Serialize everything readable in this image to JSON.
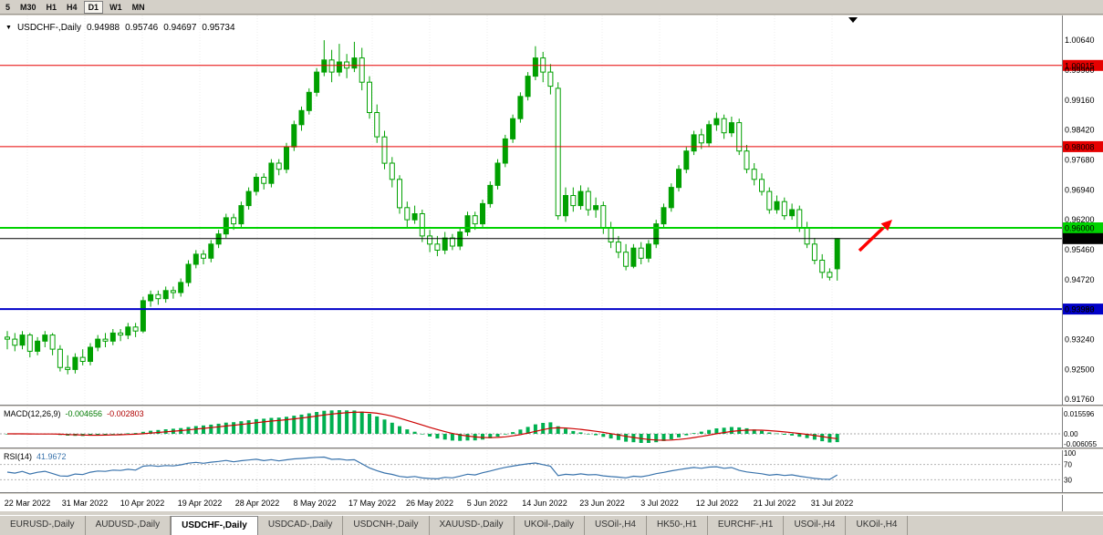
{
  "toolbar": {
    "timeframes": [
      "5",
      "M30",
      "H1",
      "H4",
      "D1",
      "W1",
      "MN"
    ],
    "active": "D1"
  },
  "chart": {
    "symbol_title": "USDCHF-,Daily",
    "open": "0.94988",
    "high": "0.95746",
    "low": "0.94697",
    "close": "0.95734"
  },
  "macd": {
    "title": "MACD(12,26,9)",
    "value_main": "-0.004656",
    "value_signal": "-0.002803",
    "axis_labels": [
      "0.015596",
      "0.00",
      "-0.006055"
    ]
  },
  "rsi": {
    "title": "RSI(14)",
    "value": "41.9672",
    "axis_labels": [
      "100",
      "70",
      "30"
    ]
  },
  "tabs": {
    "active_index": 2,
    "items": [
      "EURUSD-,Daily",
      "AUDUSD-,Daily",
      "USDCHF-,Daily",
      "USDCAD-,Daily",
      "USDCNH-,Daily",
      "XAUUSD-,Daily",
      "UKOil-,Daily",
      "USOil-,H4",
      "HK50-,H1",
      "EURCHF-,H1",
      "USOil-,H4",
      "UKOil-,H4"
    ]
  },
  "chart_data": {
    "type": "candlestick",
    "symbol": "USDCHF-",
    "timeframe": "Daily",
    "last_ohlc": {
      "open": 0.94988,
      "high": 0.95746,
      "low": 0.94697,
      "close": 0.95734
    },
    "price_axis": [
      "1.00640",
      "0.99900",
      "0.99160",
      "0.98420",
      "0.97680",
      "0.96940",
      "0.96200",
      "0.95460",
      "0.94720",
      "0.93980",
      "0.93240",
      "0.92500",
      "0.91760"
    ],
    "date_labels": [
      "22 Mar 2022",
      "31 Mar 2022",
      "10 Apr 2022",
      "19 Apr 2022",
      "28 Apr 2022",
      "8 May 2022",
      "17 May 2022",
      "26 May 2022",
      "5 Jun 2022",
      "14 Jun 2022",
      "23 Jun 2022",
      "3 Jul 2022",
      "12 Jul 2022",
      "21 Jul 2022",
      "31 Jul 2022"
    ],
    "levels": [
      {
        "label": "1.00015",
        "price": 1.00015,
        "color": "#e60000",
        "text_color": "#ffffff",
        "width": 1
      },
      {
        "label": "0.98008",
        "price": 0.98008,
        "color": "#e60000",
        "text_color": "#ffffff",
        "width": 1
      },
      {
        "label": "0.96000",
        "price": 0.96,
        "color": "#00d200",
        "text_color": "#000000",
        "width": 2
      },
      {
        "label": "0.95734",
        "price": 0.95734,
        "color": "#000000",
        "text_color": "#ffffff",
        "width": 1
      },
      {
        "label": "0.93993",
        "price": 0.93993,
        "color": "#0000c8",
        "text_color": "#ffffff",
        "width": 2
      }
    ],
    "colors": {
      "candle": "#00a000",
      "macd_hist": "#00b050",
      "macd_signal": "#cc0000",
      "rsi": "#3973ac",
      "arrow": "#ff0000"
    },
    "candles": [
      [
        0.933,
        0.9345,
        0.93,
        0.9325
      ],
      [
        0.9325,
        0.934,
        0.9295,
        0.931
      ],
      [
        0.931,
        0.9345,
        0.93,
        0.9335
      ],
      [
        0.9335,
        0.934,
        0.928,
        0.9295
      ],
      [
        0.9295,
        0.933,
        0.9285,
        0.932
      ],
      [
        0.932,
        0.9345,
        0.9305,
        0.9335
      ],
      [
        0.9335,
        0.934,
        0.9285,
        0.93
      ],
      [
        0.93,
        0.931,
        0.9245,
        0.9255
      ],
      [
        0.9255,
        0.9285,
        0.9238,
        0.925
      ],
      [
        0.925,
        0.929,
        0.924,
        0.928
      ],
      [
        0.928,
        0.93,
        0.926,
        0.927
      ],
      [
        0.927,
        0.9315,
        0.926,
        0.9305
      ],
      [
        0.9305,
        0.9335,
        0.9295,
        0.9325
      ],
      [
        0.9325,
        0.934,
        0.9305,
        0.932
      ],
      [
        0.932,
        0.935,
        0.931,
        0.934
      ],
      [
        0.934,
        0.935,
        0.932,
        0.9335
      ],
      [
        0.9335,
        0.9365,
        0.9325,
        0.9355
      ],
      [
        0.9355,
        0.9365,
        0.933,
        0.9345
      ],
      [
        0.9345,
        0.943,
        0.934,
        0.942
      ],
      [
        0.942,
        0.9445,
        0.9405,
        0.9435
      ],
      [
        0.9435,
        0.9445,
        0.941,
        0.9425
      ],
      [
        0.9425,
        0.9455,
        0.9415,
        0.9445
      ],
      [
        0.9445,
        0.9455,
        0.9425,
        0.944
      ],
      [
        0.944,
        0.9475,
        0.943,
        0.9465
      ],
      [
        0.9465,
        0.952,
        0.9455,
        0.951
      ],
      [
        0.951,
        0.9545,
        0.95,
        0.9535
      ],
      [
        0.9535,
        0.9545,
        0.951,
        0.9525
      ],
      [
        0.9525,
        0.957,
        0.9515,
        0.956
      ],
      [
        0.956,
        0.9595,
        0.955,
        0.9585
      ],
      [
        0.9585,
        0.9635,
        0.9575,
        0.9625
      ],
      [
        0.9625,
        0.9635,
        0.9595,
        0.961
      ],
      [
        0.961,
        0.9665,
        0.96,
        0.9655
      ],
      [
        0.9655,
        0.97,
        0.9645,
        0.969
      ],
      [
        0.969,
        0.9735,
        0.968,
        0.9725
      ],
      [
        0.9725,
        0.9735,
        0.9695,
        0.971
      ],
      [
        0.971,
        0.977,
        0.97,
        0.976
      ],
      [
        0.976,
        0.977,
        0.973,
        0.9745
      ],
      [
        0.9745,
        0.981,
        0.9735,
        0.98
      ],
      [
        0.98,
        0.9865,
        0.979,
        0.9855
      ],
      [
        0.9855,
        0.99,
        0.984,
        0.989
      ],
      [
        0.989,
        0.9945,
        0.988,
        0.9935
      ],
      [
        0.9935,
        0.9995,
        0.9925,
        0.9985
      ],
      [
        0.9985,
        1.0064,
        0.9975,
        1.0015
      ],
      [
        1.0015,
        1.004,
        0.996,
        0.9985
      ],
      [
        0.9985,
        1.0055,
        0.9975,
        1.001
      ],
      [
        1.001,
        1.003,
        0.997,
        0.9995
      ],
      [
        0.9995,
        1.006,
        0.9985,
        1.002
      ],
      [
        1.002,
        1.0045,
        0.994,
        0.996
      ],
      [
        0.996,
        0.9975,
        0.987,
        0.9885
      ],
      [
        0.9885,
        0.9905,
        0.981,
        0.9825
      ],
      [
        0.9825,
        0.984,
        0.9745,
        0.976
      ],
      [
        0.976,
        0.9775,
        0.97,
        0.972
      ],
      [
        0.972,
        0.973,
        0.9635,
        0.965
      ],
      [
        0.965,
        0.9665,
        0.96,
        0.962
      ],
      [
        0.962,
        0.9655,
        0.961,
        0.9635
      ],
      [
        0.9635,
        0.9645,
        0.9565,
        0.958
      ],
      [
        0.958,
        0.9595,
        0.954,
        0.956
      ],
      [
        0.956,
        0.958,
        0.953,
        0.9545
      ],
      [
        0.9545,
        0.959,
        0.9535,
        0.9575
      ],
      [
        0.9575,
        0.9585,
        0.9545,
        0.9555
      ],
      [
        0.9555,
        0.96,
        0.9545,
        0.959
      ],
      [
        0.959,
        0.964,
        0.958,
        0.963
      ],
      [
        0.963,
        0.964,
        0.9595,
        0.961
      ],
      [
        0.961,
        0.967,
        0.96,
        0.966
      ],
      [
        0.966,
        0.9715,
        0.965,
        0.9705
      ],
      [
        0.9705,
        0.977,
        0.9695,
        0.976
      ],
      [
        0.976,
        0.983,
        0.975,
        0.982
      ],
      [
        0.982,
        0.988,
        0.981,
        0.987
      ],
      [
        0.987,
        0.9935,
        0.986,
        0.9925
      ],
      [
        0.9925,
        0.9985,
        0.9915,
        0.9975
      ],
      [
        0.9975,
        1.0049,
        0.9965,
        1.002
      ],
      [
        1.002,
        1.0035,
        0.996,
        0.9985
      ],
      [
        0.9985,
        1.0005,
        0.993,
        0.995
      ],
      [
        0.9945,
        0.996,
        0.962,
        0.963
      ],
      [
        0.963,
        0.97,
        0.9615,
        0.968
      ],
      [
        0.968,
        0.97,
        0.964,
        0.9655
      ],
      [
        0.9655,
        0.9705,
        0.9645,
        0.969
      ],
      [
        0.969,
        0.97,
        0.963,
        0.9645
      ],
      [
        0.9645,
        0.9675,
        0.9625,
        0.9655
      ],
      [
        0.9655,
        0.9665,
        0.9585,
        0.96
      ],
      [
        0.96,
        0.9615,
        0.955,
        0.9565
      ],
      [
        0.9565,
        0.958,
        0.9525,
        0.954
      ],
      [
        0.954,
        0.956,
        0.9495,
        0.9505
      ],
      [
        0.9505,
        0.956,
        0.95,
        0.955
      ],
      [
        0.955,
        0.9565,
        0.951,
        0.9525
      ],
      [
        0.9525,
        0.957,
        0.9515,
        0.956
      ],
      [
        0.956,
        0.962,
        0.955,
        0.961
      ],
      [
        0.961,
        0.966,
        0.96,
        0.965
      ],
      [
        0.965,
        0.971,
        0.964,
        0.97
      ],
      [
        0.97,
        0.9755,
        0.969,
        0.9745
      ],
      [
        0.9745,
        0.98,
        0.9735,
        0.979
      ],
      [
        0.979,
        0.984,
        0.978,
        0.983
      ],
      [
        0.983,
        0.9845,
        0.9795,
        0.981
      ],
      [
        0.981,
        0.9865,
        0.98,
        0.9855
      ],
      [
        0.9855,
        0.9885,
        0.984,
        0.987
      ],
      [
        0.987,
        0.988,
        0.982,
        0.9835
      ],
      [
        0.9835,
        0.9875,
        0.9825,
        0.986
      ],
      [
        0.986,
        0.987,
        0.978,
        0.979
      ],
      [
        0.979,
        0.9805,
        0.9735,
        0.9745
      ],
      [
        0.9745,
        0.976,
        0.9705,
        0.972
      ],
      [
        0.972,
        0.9735,
        0.968,
        0.969
      ],
      [
        0.969,
        0.97,
        0.9635,
        0.9645
      ],
      [
        0.9645,
        0.968,
        0.9635,
        0.9665
      ],
      [
        0.9665,
        0.9675,
        0.962,
        0.963
      ],
      [
        0.963,
        0.966,
        0.962,
        0.9645
      ],
      [
        0.9645,
        0.9655,
        0.959,
        0.96
      ],
      [
        0.96,
        0.9615,
        0.955,
        0.956
      ],
      [
        0.956,
        0.9575,
        0.951,
        0.952
      ],
      [
        0.952,
        0.9535,
        0.9475,
        0.949
      ],
      [
        0.949,
        0.95,
        0.947,
        0.9478
      ],
      [
        0.94988,
        0.95746,
        0.94697,
        0.95734
      ]
    ]
  }
}
